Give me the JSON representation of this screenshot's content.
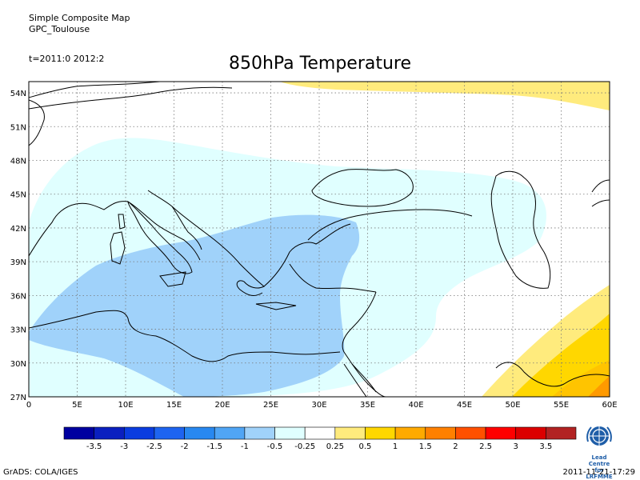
{
  "header": {
    "line1": "Simple Composite Map",
    "line2": "GPC_Toulouse",
    "time_range": "t=2011:0 2012:2",
    "title": "850hPa Temperature"
  },
  "map": {
    "lat_labels": [
      "54N",
      "51N",
      "48N",
      "45N",
      "42N",
      "39N",
      "36N",
      "33N",
      "30N",
      "27N"
    ],
    "lon_labels": [
      "0",
      "5E",
      "10E",
      "15E",
      "20E",
      "25E",
      "30E",
      "35E",
      "40E",
      "45E",
      "50E",
      "55E",
      "60E"
    ],
    "extent": {
      "lon": [
        0,
        60
      ],
      "lat": [
        27,
        55
      ]
    },
    "fill_colors": {
      "light_cyan": "#e0ffff",
      "light_blue": "#a0d2fa",
      "pale_yellow": "#ffeb7d",
      "yellow": "#ffd700",
      "gold": "#ffc400",
      "orange": "#ff9a00"
    }
  },
  "colorbar": {
    "labels": [
      "-3.5",
      "-3",
      "-2.5",
      "-2",
      "-1.5",
      "-1",
      "-0.5",
      "-0.25",
      "0.25",
      "0.5",
      "1",
      "1.5",
      "2",
      "2.5",
      "3",
      "3.5"
    ],
    "colors": [
      "#0000a0",
      "#0a1fc0",
      "#0a3ce0",
      "#1e64f0",
      "#2888f0",
      "#50a5f5",
      "#a0d2fa",
      "#e0ffff",
      "#ffffff",
      "#ffeb7d",
      "#ffd700",
      "#ffaa00",
      "#ff8000",
      "#ff5000",
      "#ff0000",
      "#dc0000",
      "#b22222"
    ]
  },
  "logo": {
    "caption_line1": "Lead Centre",
    "caption_line2": "for LRFMME",
    "icon": "wmo-emblem-icon"
  },
  "footer": {
    "left": "GrADS: COLA/IGES",
    "right": "2011-11-21-17:29"
  }
}
